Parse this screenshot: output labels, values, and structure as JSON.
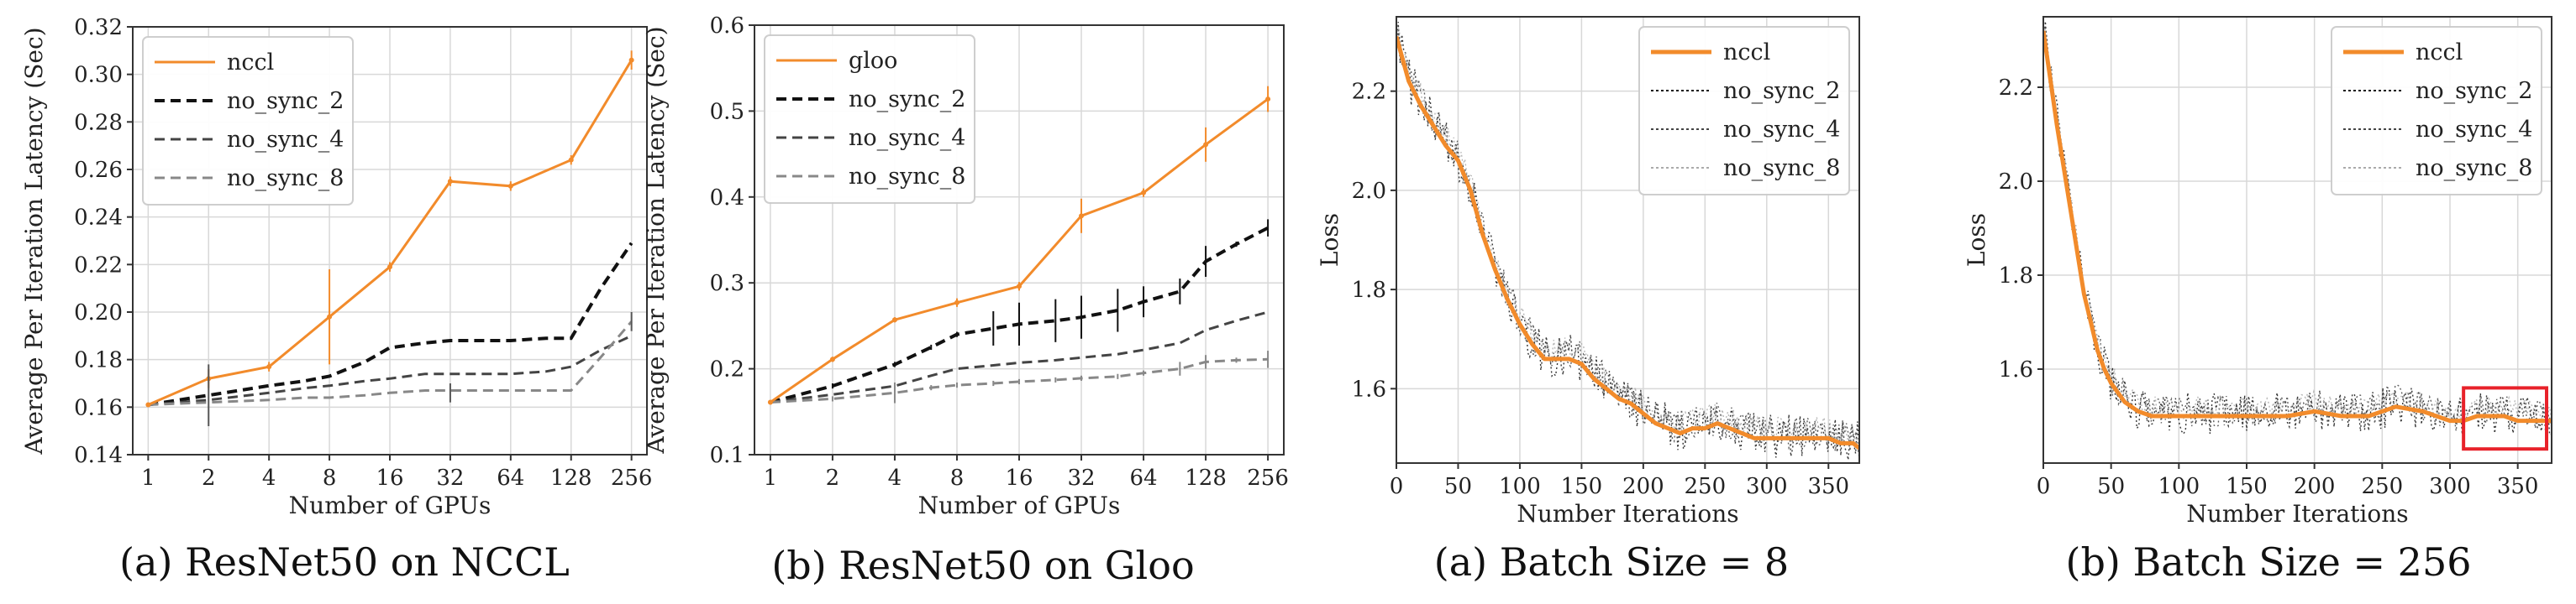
{
  "colors": {
    "nccl": "#f28b2b",
    "gloo": "#f28b2b",
    "no_sync_2": "#111111",
    "no_sync_4": "#444444",
    "no_sync_8": "#888888",
    "highlight": "#e8222a"
  },
  "chart_data": [
    {
      "type": "line",
      "caption": "(a) ResNet50 on NCCL",
      "xlabel": "Number of GPUs",
      "ylabel": "Average Per Iteration Latency (Sec)",
      "x_scale": "log2",
      "categories": [
        "1",
        "2",
        "4",
        "8",
        "16",
        "32",
        "64",
        "128",
        "256"
      ],
      "x": [
        1,
        2,
        4,
        8,
        16,
        32,
        64,
        128,
        256
      ],
      "ylim": [
        0.14,
        0.32
      ],
      "yticks": [
        "0.14",
        "0.16",
        "0.18",
        "0.20",
        "0.22",
        "0.24",
        "0.26",
        "0.28",
        "0.30",
        "0.32"
      ],
      "grid": true,
      "legend_position": "top-left",
      "series": [
        {
          "name": "nccl",
          "style": "solid-marker",
          "x": [
            1,
            2,
            4,
            8,
            16,
            32,
            64,
            128,
            256
          ],
          "values": [
            0.161,
            0.172,
            0.177,
            0.198,
            0.219,
            0.255,
            0.253,
            0.264,
            0.306
          ],
          "error": [
            0,
            0.004,
            0.002,
            0.02,
            0.002,
            0.002,
            0.002,
            0.002,
            0.004
          ]
        },
        {
          "name": "no_sync_2",
          "style": "dash-heavy",
          "x": [
            1,
            2,
            4,
            6,
            8,
            12,
            16,
            24,
            32,
            48,
            64,
            96,
            128,
            180,
            256
          ],
          "values": [
            0.161,
            0.165,
            0.169,
            0.171,
            0.173,
            0.179,
            0.185,
            0.187,
            0.188,
            0.188,
            0.188,
            0.189,
            0.189,
            0.21,
            0.229
          ]
        },
        {
          "name": "no_sync_4",
          "style": "dash-medium",
          "x": [
            1,
            2,
            4,
            6,
            8,
            12,
            16,
            24,
            32,
            48,
            64,
            96,
            128,
            180,
            256
          ],
          "values": [
            0.161,
            0.163,
            0.166,
            0.168,
            0.169,
            0.171,
            0.172,
            0.174,
            0.174,
            0.174,
            0.174,
            0.175,
            0.177,
            0.184,
            0.19
          ]
        },
        {
          "name": "no_sync_8",
          "style": "dash-light",
          "x": [
            1,
            2,
            4,
            6,
            8,
            12,
            16,
            24,
            32,
            48,
            64,
            96,
            128,
            180,
            256
          ],
          "values": [
            0.161,
            0.162,
            0.163,
            0.164,
            0.164,
            0.165,
            0.166,
            0.167,
            0.167,
            0.167,
            0.167,
            0.167,
            0.167,
            0.181,
            0.196
          ]
        }
      ],
      "error_bars": [
        {
          "x": 2,
          "y": 0.165,
          "err": 0.013
        },
        {
          "x": 32,
          "y": 0.166,
          "err": 0.004
        },
        {
          "x": 256,
          "y": 0.196,
          "err": 0.004
        }
      ]
    },
    {
      "type": "line",
      "caption": "(b) ResNet50 on Gloo",
      "xlabel": "Number of GPUs",
      "ylabel": "Average Per Iteration Latency (Sec)",
      "x_scale": "log2",
      "categories": [
        "1",
        "2",
        "4",
        "8",
        "16",
        "32",
        "64",
        "128",
        "256"
      ],
      "x": [
        1,
        2,
        4,
        8,
        16,
        32,
        64,
        128,
        256
      ],
      "ylim": [
        0.1,
        0.6
      ],
      "yticks": [
        "0.1",
        "0.2",
        "0.3",
        "0.4",
        "0.5",
        "0.6"
      ],
      "grid": true,
      "legend_position": "top-left",
      "series": [
        {
          "name": "gloo",
          "style": "solid-marker",
          "x": [
            1,
            2,
            4,
            8,
            16,
            32,
            64,
            128,
            256
          ],
          "values": [
            0.161,
            0.211,
            0.257,
            0.277,
            0.296,
            0.378,
            0.405,
            0.461,
            0.514
          ],
          "error": [
            0,
            0.003,
            0.003,
            0.005,
            0.005,
            0.02,
            0.005,
            0.02,
            0.015
          ]
        },
        {
          "name": "no_sync_2",
          "style": "dash-heavy",
          "x": [
            1,
            2,
            4,
            6,
            8,
            12,
            16,
            24,
            32,
            48,
            64,
            96,
            128,
            180,
            256
          ],
          "values": [
            0.161,
            0.18,
            0.205,
            0.225,
            0.24,
            0.247,
            0.252,
            0.256,
            0.26,
            0.268,
            0.278,
            0.29,
            0.325,
            0.345,
            0.364
          ],
          "error": [
            0,
            0.003,
            0.003,
            0.003,
            0.003,
            0.02,
            0.025,
            0.025,
            0.025,
            0.025,
            0.018,
            0.015,
            0.018,
            0.003,
            0.01
          ]
        },
        {
          "name": "no_sync_4",
          "style": "dash-medium",
          "x": [
            1,
            2,
            4,
            6,
            8,
            12,
            16,
            24,
            32,
            48,
            64,
            96,
            128,
            180,
            256
          ],
          "values": [
            0.161,
            0.17,
            0.18,
            0.192,
            0.2,
            0.204,
            0.207,
            0.21,
            0.213,
            0.217,
            0.222,
            0.23,
            0.245,
            0.256,
            0.266
          ]
        },
        {
          "name": "no_sync_8",
          "style": "dash-light",
          "x": [
            1,
            2,
            4,
            6,
            8,
            12,
            16,
            24,
            32,
            48,
            64,
            96,
            128,
            180,
            256
          ],
          "values": [
            0.161,
            0.165,
            0.172,
            0.178,
            0.181,
            0.183,
            0.185,
            0.187,
            0.189,
            0.191,
            0.195,
            0.2,
            0.208,
            0.21,
            0.211
          ],
          "error": [
            0,
            0.003,
            0.012,
            0.003,
            0.003,
            0.003,
            0.003,
            0.003,
            0.003,
            0.003,
            0.003,
            0.008,
            0.008,
            0.003,
            0.01
          ]
        }
      ]
    },
    {
      "type": "line",
      "caption": "(a) Batch Size = 8",
      "xlabel": "Number Iterations",
      "ylabel": "Loss",
      "xlim": [
        0,
        375
      ],
      "xticks": [
        "0",
        "50",
        "100",
        "150",
        "200",
        "250",
        "300",
        "350"
      ],
      "ylim": [
        1.45,
        2.35
      ],
      "yticks": [
        "1.6",
        "1.8",
        "2.0",
        "2.2"
      ],
      "grid": true,
      "legend_position": "top-right",
      "series": [
        {
          "name": "nccl",
          "style": "solid-thick",
          "x": [
            0,
            10,
            20,
            30,
            40,
            50,
            60,
            70,
            80,
            90,
            100,
            110,
            120,
            130,
            140,
            150,
            160,
            170,
            180,
            190,
            200,
            210,
            220,
            230,
            240,
            250,
            260,
            270,
            280,
            290,
            300,
            310,
            320,
            330,
            340,
            350,
            360,
            370,
            375
          ],
          "values": [
            2.31,
            2.22,
            2.17,
            2.13,
            2.09,
            2.06,
            2.0,
            1.91,
            1.84,
            1.78,
            1.73,
            1.69,
            1.66,
            1.66,
            1.66,
            1.65,
            1.62,
            1.6,
            1.58,
            1.57,
            1.55,
            1.53,
            1.52,
            1.51,
            1.52,
            1.52,
            1.53,
            1.52,
            1.51,
            1.5,
            1.5,
            1.5,
            1.5,
            1.5,
            1.5,
            1.5,
            1.49,
            1.49,
            1.48
          ]
        },
        {
          "name": "no_sync_2",
          "style": "dot-dark"
        },
        {
          "name": "no_sync_4",
          "style": "dot-medium"
        },
        {
          "name": "no_sync_8",
          "style": "dot-light"
        }
      ]
    },
    {
      "type": "line",
      "caption": "(b) Batch Size = 256",
      "xlabel": "Number Iterations",
      "ylabel": "Loss",
      "xlim": [
        0,
        375
      ],
      "xticks": [
        "0",
        "50",
        "100",
        "150",
        "200",
        "250",
        "300",
        "350"
      ],
      "ylim": [
        1.4,
        2.35
      ],
      "yticks": [
        "1.6",
        "1.8",
        "2.0",
        "2.2"
      ],
      "grid": true,
      "legend_position": "top-right",
      "series": [
        {
          "name": "nccl",
          "style": "solid-thick",
          "x": [
            0,
            5,
            10,
            15,
            20,
            25,
            30,
            35,
            40,
            45,
            50,
            60,
            70,
            80,
            90,
            100,
            120,
            140,
            160,
            180,
            200,
            220,
            240,
            260,
            280,
            300,
            310,
            320,
            330,
            340,
            350,
            360,
            370,
            375
          ],
          "values": [
            2.32,
            2.22,
            2.12,
            2.03,
            1.94,
            1.85,
            1.76,
            1.7,
            1.64,
            1.6,
            1.57,
            1.53,
            1.51,
            1.5,
            1.5,
            1.5,
            1.5,
            1.5,
            1.5,
            1.5,
            1.51,
            1.5,
            1.5,
            1.52,
            1.51,
            1.49,
            1.49,
            1.5,
            1.5,
            1.5,
            1.49,
            1.49,
            1.49,
            1.49
          ]
        },
        {
          "name": "no_sync_2",
          "style": "dot-dark"
        },
        {
          "name": "no_sync_4",
          "style": "dot-medium"
        },
        {
          "name": "no_sync_8",
          "style": "dot-light"
        }
      ],
      "highlight_box": {
        "x": [
          310,
          375
        ],
        "y": [
          1.43,
          1.56
        ]
      }
    }
  ]
}
